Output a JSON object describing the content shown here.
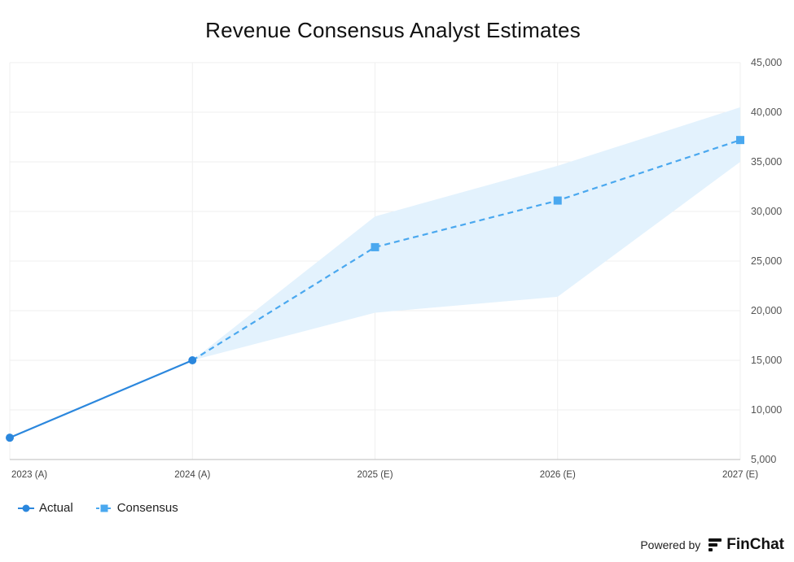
{
  "chart_data": {
    "type": "line",
    "title": "Revenue Consensus Analyst Estimates",
    "categories": [
      "2023 (A)",
      "2024 (A)",
      "2025 (E)",
      "2026 (E)",
      "2027 (E)"
    ],
    "ylim": [
      5000,
      45000
    ],
    "yticks": [
      5000,
      10000,
      15000,
      20000,
      25000,
      30000,
      35000,
      40000,
      45000
    ],
    "ytick_labels": [
      "5,000",
      "10,000",
      "15,000",
      "20,000",
      "25,000",
      "30,000",
      "35,000",
      "40,000",
      "45,000"
    ],
    "y_axis_side": "right",
    "grid": true,
    "series": [
      {
        "name": "Actual",
        "style": "solid",
        "marker": "circle",
        "color": "#2b87dd",
        "values": [
          7200,
          15000,
          null,
          null,
          null
        ]
      },
      {
        "name": "Consensus",
        "style": "dashed",
        "marker": "square",
        "color": "#4aa8ef",
        "values": [
          null,
          15000,
          26400,
          31100,
          37200
        ]
      }
    ],
    "range_band": {
      "color": "#e3f2fd",
      "high": [
        null,
        15000,
        29500,
        34600,
        40500
      ],
      "low": [
        null,
        15000,
        19800,
        21400,
        35000
      ]
    },
    "legend_position": "bottom-left"
  },
  "footer": {
    "powered_by": "Powered by",
    "brand": "FinChat",
    "brand_icon": "finchat-logo-icon"
  }
}
